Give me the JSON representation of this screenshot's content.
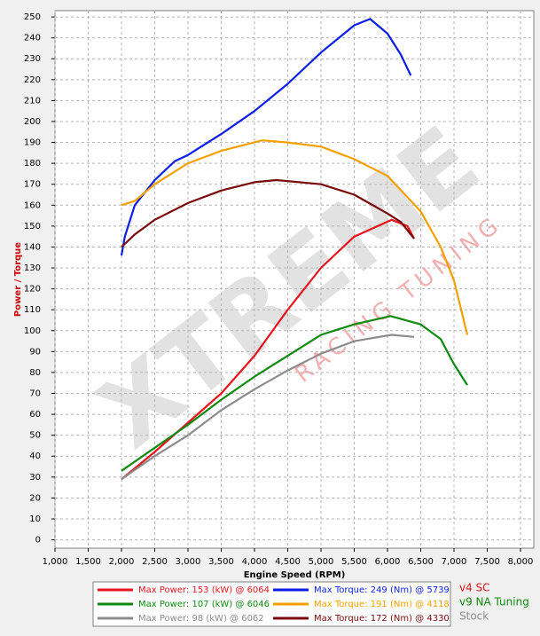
{
  "chart_data": {
    "type": "line",
    "x_label": "Engine Speed (RPM)",
    "y_label": "Power / Torque",
    "watermark": "XTREME",
    "watermark_sub": "RACING TUNING",
    "xlim": [
      1000,
      8200
    ],
    "ylim": [
      -4,
      253
    ],
    "xticks": [
      {
        "value": 1000,
        "label": "1,000"
      },
      {
        "value": 1500,
        "label": "1,500"
      },
      {
        "value": 2000,
        "label": "2,000"
      },
      {
        "value": 2500,
        "label": "2,500"
      },
      {
        "value": 3000,
        "label": "3,000"
      },
      {
        "value": 3500,
        "label": "3,500"
      },
      {
        "value": 4000,
        "label": "4,000"
      },
      {
        "value": 4500,
        "label": "4,500"
      },
      {
        "value": 5000,
        "label": "5,000"
      },
      {
        "value": 5500,
        "label": "5,500"
      },
      {
        "value": 6000,
        "label": "6,000"
      },
      {
        "value": 6500,
        "label": "6,500"
      },
      {
        "value": 7000,
        "label": "7,000"
      },
      {
        "value": 7500,
        "label": "7,500"
      },
      {
        "value": 8000,
        "label": "8,000"
      }
    ],
    "yticks": [
      0,
      10,
      20,
      30,
      40,
      50,
      60,
      70,
      80,
      90,
      100,
      110,
      120,
      130,
      140,
      150,
      160,
      170,
      180,
      190,
      200,
      210,
      220,
      230,
      240,
      250
    ],
    "grid": true,
    "series": [
      {
        "name": "Max Power: 153 (kW) @ 6064",
        "color": "#e8141c",
        "x": [
          2000,
          2500,
          3000,
          3500,
          4000,
          4500,
          5000,
          5500,
          6064,
          6300,
          6400
        ],
        "values": [
          29,
          42,
          56,
          70,
          88,
          110,
          130,
          145,
          153,
          150,
          144
        ]
      },
      {
        "name": "Max Torque: 249 (Nm) @ 5739",
        "color": "#0a1ee6",
        "x": [
          2000,
          2050,
          2200,
          2500,
          2800,
          3000,
          3500,
          4000,
          4500,
          5000,
          5500,
          5739,
          6000,
          6200,
          6350
        ],
        "values": [
          136,
          145,
          160,
          172,
          181,
          184,
          194,
          205,
          218,
          233,
          246,
          249,
          242,
          232,
          222
        ]
      },
      {
        "name": "Max Power: 107 (kW) @ 6046",
        "color": "#0f8a0f",
        "x": [
          2000,
          2500,
          3000,
          3500,
          4000,
          4500,
          5000,
          5500,
          6046,
          6500,
          6800,
          7000,
          7200
        ],
        "values": [
          33,
          44,
          55,
          67,
          78,
          88,
          98,
          103,
          107,
          103,
          96,
          84,
          74
        ]
      },
      {
        "name": "Max Torque: 191 (Nm) @ 4118",
        "color": "#f5a000",
        "x": [
          2000,
          2200,
          2500,
          3000,
          3500,
          4118,
          4500,
          5000,
          5500,
          6000,
          6500,
          6800,
          7000,
          7200
        ],
        "values": [
          160,
          162,
          170,
          180,
          186,
          191,
          190,
          188,
          182,
          174,
          157,
          140,
          124,
          98
        ]
      },
      {
        "name": "Max Power: 98 (kW) @ 6062",
        "color": "#8c8c8c",
        "x": [
          2000,
          2500,
          3000,
          3500,
          4000,
          4500,
          5000,
          5500,
          6062,
          6400
        ],
        "values": [
          29,
          40,
          50,
          62,
          72,
          81,
          89,
          95,
          98,
          97
        ]
      },
      {
        "name": "Max Torque: 172 (Nm) @ 4330",
        "color": "#7a0a0a",
        "x": [
          2000,
          2200,
          2500,
          3000,
          3500,
          4000,
          4330,
          5000,
          5500,
          6000,
          6200,
          6400
        ],
        "values": [
          140,
          146,
          153,
          161,
          167,
          171,
          172,
          170,
          165,
          156,
          152,
          144
        ]
      }
    ],
    "groups": [
      {
        "label": "v4 SC",
        "color": "#e8141c"
      },
      {
        "label": "v9 NA Tuning",
        "color": "#0f8a0f"
      },
      {
        "label": "Stock",
        "color": "#8c8c8c"
      }
    ]
  }
}
